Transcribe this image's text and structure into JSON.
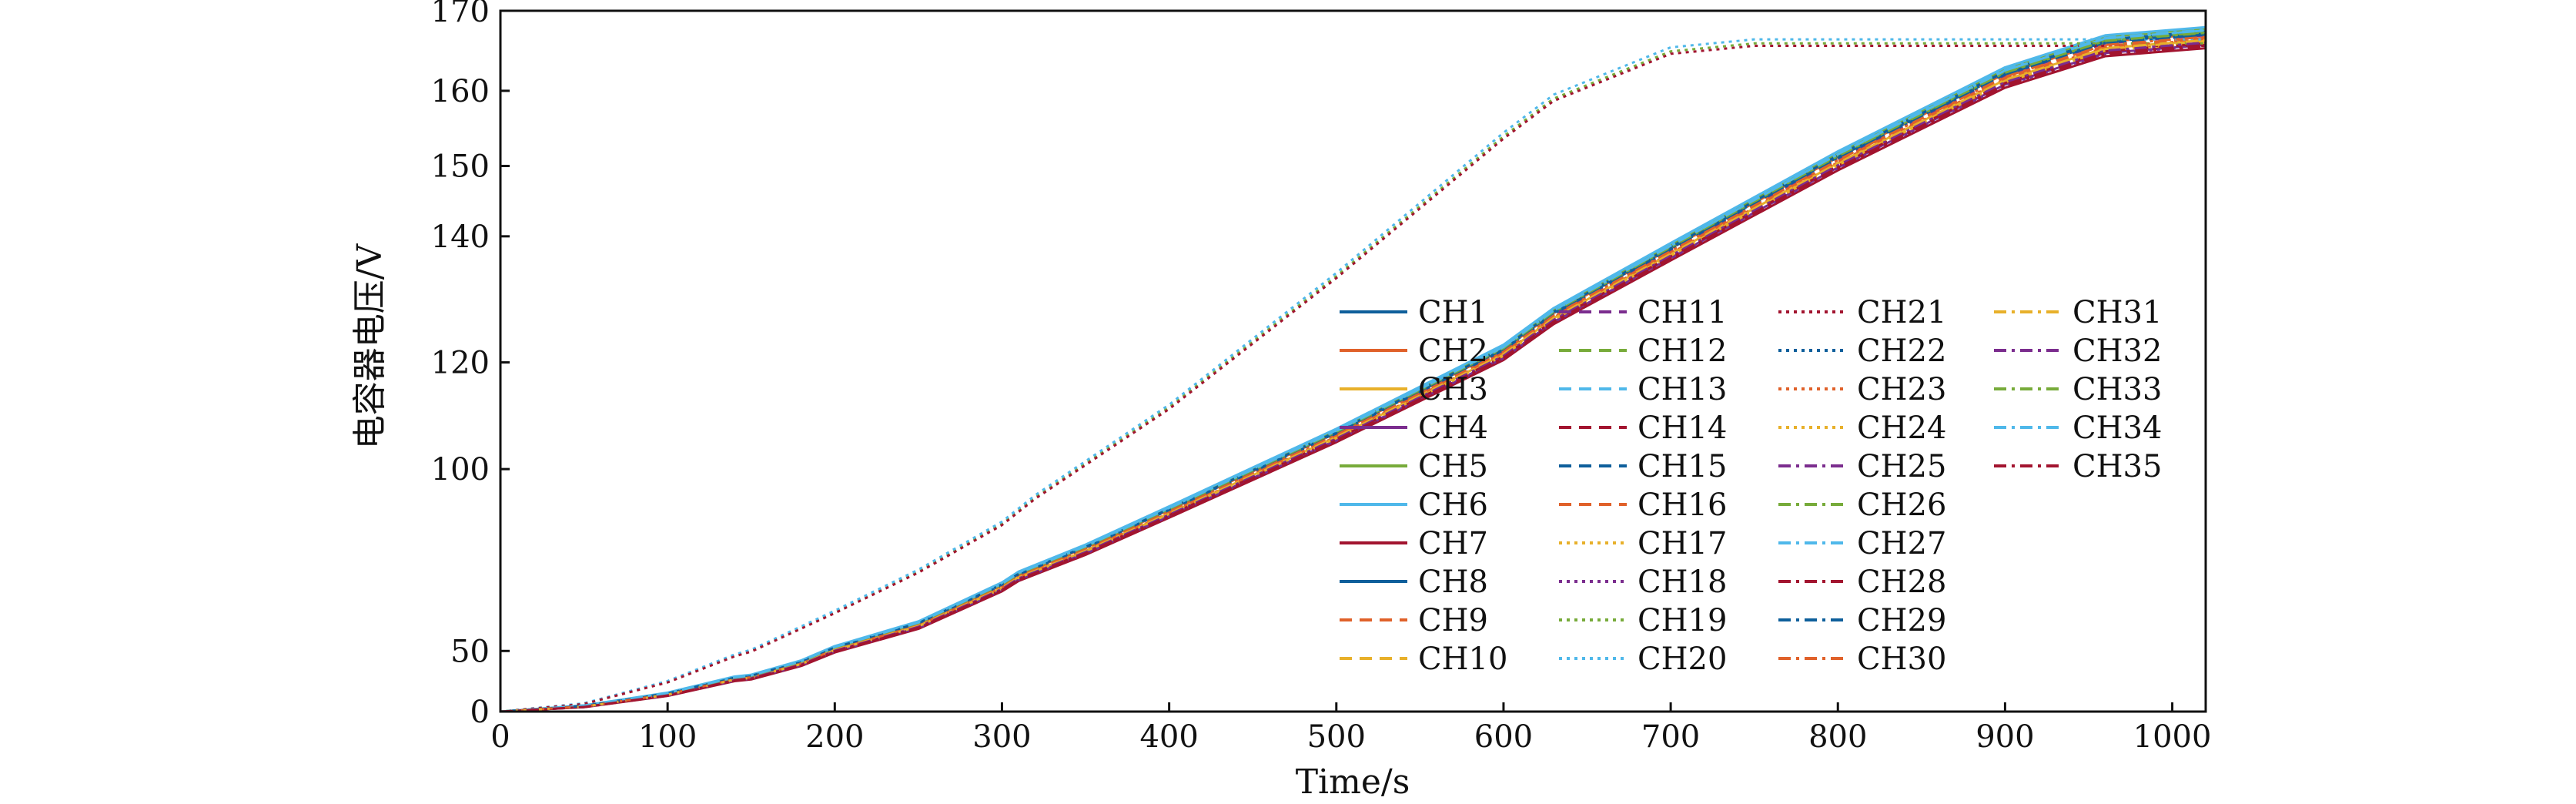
{
  "chart_data": {
    "type": "line",
    "xlabel": "Time/s",
    "ylabel": "电容器电压/V",
    "xlim": [
      0,
      1020
    ],
    "ylim": [
      0,
      170
    ],
    "y_scale": "quadratic (tick positions stretch toward the top)",
    "xticks": [
      0,
      100,
      200,
      300,
      400,
      500,
      600,
      700,
      800,
      900,
      1000
    ],
    "yticks": [
      0,
      50,
      100,
      120,
      140,
      150,
      160,
      170
    ],
    "grid": false,
    "legend_position": "center-right, 4 columns",
    "group_a": {
      "description": "CH1–CH18, CH22–CH35 (bundle of nearly identical curves)",
      "x": [
        0,
        50,
        100,
        140,
        150,
        180,
        200,
        250,
        300,
        310,
        350,
        400,
        500,
        600,
        630,
        700,
        800,
        900,
        960,
        1020
      ],
      "y": [
        0,
        15,
        27,
        37,
        38,
        45,
        51,
        60,
        72,
        75,
        82,
        91,
        107,
        122,
        128,
        138,
        151,
        162,
        166,
        167
      ]
    },
    "group_b": {
      "description": "CH19, CH20, CH21 (faster-charging curves)",
      "x": [
        0,
        50,
        100,
        140,
        150,
        200,
        250,
        300,
        320,
        400,
        500,
        600,
        630,
        700,
        750,
        800,
        900,
        1020
      ],
      "y": [
        0,
        18,
        35,
        48,
        50,
        64,
        76,
        88,
        94,
        112,
        134,
        154,
        159,
        165,
        166,
        166,
        166,
        166
      ]
    },
    "series": [
      {
        "name": "CH1",
        "color": "#0e5f9b",
        "dash": "solid",
        "group": "a",
        "dy": 0.5
      },
      {
        "name": "CH2",
        "color": "#e0612a",
        "dash": "solid",
        "group": "a",
        "dy": 0.2
      },
      {
        "name": "CH3",
        "color": "#e8b02a",
        "dash": "solid",
        "group": "a",
        "dy": -0.6
      },
      {
        "name": "CH4",
        "color": "#7b2d8e",
        "dash": "solid",
        "group": "a",
        "dy": -1.2
      },
      {
        "name": "CH5",
        "color": "#77ab3a",
        "dash": "solid",
        "group": "a",
        "dy": 0.8
      },
      {
        "name": "CH6",
        "color": "#4fb8ea",
        "dash": "solid",
        "group": "a",
        "dy": 1.0
      },
      {
        "name": "CH7",
        "color": "#a2142f",
        "dash": "solid",
        "group": "a",
        "dy": -1.6
      },
      {
        "name": "CH8",
        "color": "#0e5f9b",
        "dash": "solid",
        "group": "a",
        "dy": 0.4
      },
      {
        "name": "CH9",
        "color": "#e0612a",
        "dash": "dashed",
        "group": "a",
        "dy": -0.3
      },
      {
        "name": "CH10",
        "color": "#e8b02a",
        "dash": "dashed",
        "group": "a",
        "dy": -0.8
      },
      {
        "name": "CH11",
        "color": "#7b2d8e",
        "dash": "dashed",
        "group": "a",
        "dy": 0.0
      },
      {
        "name": "CH12",
        "color": "#77ab3a",
        "dash": "dashed",
        "group": "a",
        "dy": 0.3
      },
      {
        "name": "CH13",
        "color": "#4fb8ea",
        "dash": "dashed",
        "group": "a",
        "dy": 0.6
      },
      {
        "name": "CH14",
        "color": "#a2142f",
        "dash": "dashed",
        "group": "a",
        "dy": -1.0
      },
      {
        "name": "CH15",
        "color": "#0e5f9b",
        "dash": "dashed",
        "group": "a",
        "dy": 0.1
      },
      {
        "name": "CH16",
        "color": "#e0612a",
        "dash": "dashed",
        "group": "a",
        "dy": -0.4
      },
      {
        "name": "CH17",
        "color": "#e8b02a",
        "dash": "dotted",
        "group": "a",
        "dy": -0.9
      },
      {
        "name": "CH18",
        "color": "#7b2d8e",
        "dash": "dotted",
        "group": "a",
        "dy": -1.3
      },
      {
        "name": "CH19",
        "color": "#77ab3a",
        "dash": "dotted",
        "group": "b",
        "dy": 0.0
      },
      {
        "name": "CH20",
        "color": "#4fb8ea",
        "dash": "dotted",
        "group": "b",
        "dy": 0.5
      },
      {
        "name": "CH21",
        "color": "#a2142f",
        "dash": "dotted",
        "group": "b",
        "dy": -0.3
      },
      {
        "name": "CH22",
        "color": "#0e5f9b",
        "dash": "dotted",
        "group": "a",
        "dy": 0.2
      },
      {
        "name": "CH23",
        "color": "#e0612a",
        "dash": "dotted",
        "group": "a",
        "dy": -0.5
      },
      {
        "name": "CH24",
        "color": "#e8b02a",
        "dash": "dotted",
        "group": "a",
        "dy": -0.7
      },
      {
        "name": "CH25",
        "color": "#7b2d8e",
        "dash": "dashdot",
        "group": "a",
        "dy": -1.1
      },
      {
        "name": "CH26",
        "color": "#77ab3a",
        "dash": "dashdot",
        "group": "a",
        "dy": 0.3
      },
      {
        "name": "CH27",
        "color": "#4fb8ea",
        "dash": "dashdot",
        "group": "a",
        "dy": 0.7
      },
      {
        "name": "CH28",
        "color": "#a2142f",
        "dash": "dashdot",
        "group": "a",
        "dy": -1.4
      },
      {
        "name": "CH29",
        "color": "#0e5f9b",
        "dash": "dashdot",
        "group": "a",
        "dy": 0.0
      },
      {
        "name": "CH30",
        "color": "#e0612a",
        "dash": "dashdot",
        "group": "a",
        "dy": -0.2
      },
      {
        "name": "CH31",
        "color": "#e8b02a",
        "dash": "dashdot",
        "group": "a",
        "dy": -0.6
      },
      {
        "name": "CH32",
        "color": "#7b2d8e",
        "dash": "dashdot",
        "group": "a",
        "dy": -0.9
      },
      {
        "name": "CH33",
        "color": "#77ab3a",
        "dash": "dashdot",
        "group": "a",
        "dy": 0.4
      },
      {
        "name": "CH34",
        "color": "#4fb8ea",
        "dash": "dashdot",
        "group": "a",
        "dy": 0.6
      },
      {
        "name": "CH35",
        "color": "#a2142f",
        "dash": "dashdot",
        "group": "a",
        "dy": -1.2
      }
    ]
  }
}
